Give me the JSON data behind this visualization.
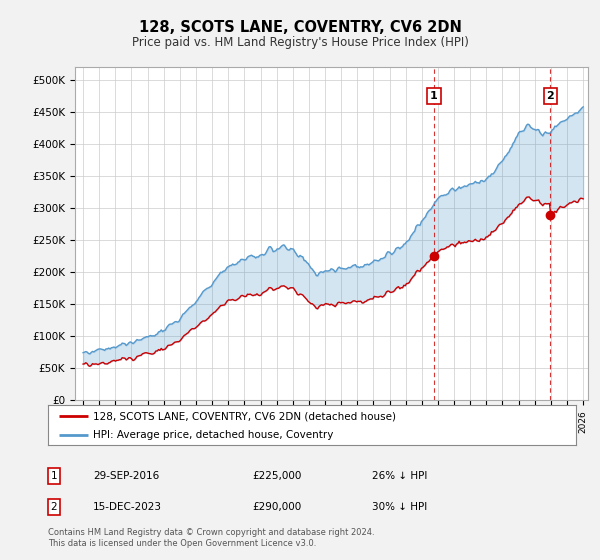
{
  "title": "128, SCOTS LANE, COVENTRY, CV6 2DN",
  "subtitle": "Price paid vs. HM Land Registry's House Price Index (HPI)",
  "ylim": [
    0,
    520000
  ],
  "ytick_labels": [
    "£0",
    "£50K",
    "£100K",
    "£150K",
    "£200K",
    "£250K",
    "£300K",
    "£350K",
    "£400K",
    "£450K",
    "£500K"
  ],
  "hpi_color": "#5599cc",
  "hpi_fill_color": "#cce0f0",
  "price_color": "#cc0000",
  "legend_label1": "128, SCOTS LANE, COVENTRY, CV6 2DN (detached house)",
  "legend_label2": "HPI: Average price, detached house, Coventry",
  "note1_num": "1",
  "note1_date": "29-SEP-2016",
  "note1_price": "£225,000",
  "note1_hpi": "26% ↓ HPI",
  "note2_num": "2",
  "note2_date": "15-DEC-2023",
  "note2_price": "£290,000",
  "note2_hpi": "30% ↓ HPI",
  "footer": "Contains HM Land Registry data © Crown copyright and database right 2024.\nThis data is licensed under the Open Government Licence v3.0.",
  "bg_color": "#f2f2f2",
  "plot_bg_color": "#ffffff"
}
